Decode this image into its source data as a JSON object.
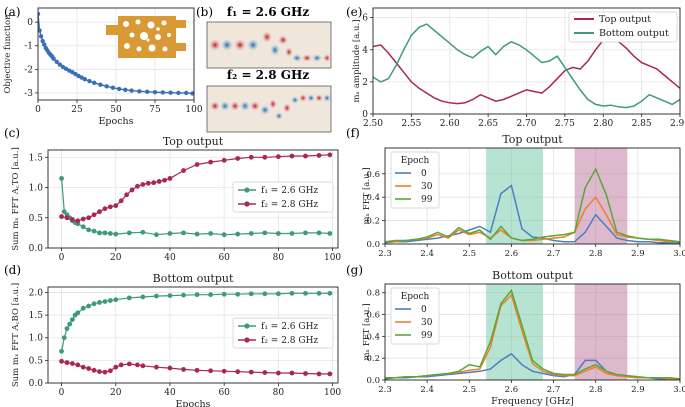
{
  "colors": {
    "blue_series": "#3a6fb5",
    "top_series": "#a8284e",
    "bottom_series": "#3e9a7d",
    "epoch0": "#4c7fc0",
    "epoch30": "#f07f2a",
    "epoch99": "#58a839",
    "band_f1": "#5fc09e",
    "band_f2": "#b5628f",
    "device": "#d99a36"
  },
  "chart_data": [
    {
      "panel": "(a)",
      "type": "scatter",
      "title": "",
      "xlabel": "Epochs",
      "ylabel": "Objective function",
      "xlim": [
        0,
        100
      ],
      "ylim": [
        -3.3,
        0.6
      ],
      "xticks": [
        0,
        25,
        50,
        75,
        100
      ],
      "yticks": [
        0,
        -1,
        -2,
        -3
      ],
      "x": [
        0,
        1,
        2,
        3,
        4,
        5,
        6,
        7,
        8,
        9,
        10,
        12,
        14,
        16,
        18,
        20,
        22,
        24,
        26,
        28,
        30,
        33,
        36,
        40,
        44,
        48,
        52,
        56,
        60,
        65,
        70,
        75,
        80,
        85,
        90,
        95,
        99
      ],
      "y": [
        0.35,
        -0.35,
        -0.6,
        -0.8,
        -0.95,
        -1.1,
        -1.2,
        -1.3,
        -1.38,
        -1.45,
        -1.55,
        -1.68,
        -1.8,
        -1.9,
        -1.98,
        -2.05,
        -2.12,
        -2.2,
        -2.28,
        -2.35,
        -2.42,
        -2.5,
        -2.57,
        -2.65,
        -2.72,
        -2.78,
        -2.83,
        -2.87,
        -2.9,
        -2.93,
        -2.95,
        -2.97,
        -2.98,
        -2.99,
        -3.0,
        -3.0,
        -3.02
      ]
    },
    {
      "panel": "(b)",
      "type": "image",
      "labels": [
        "f₁ = 2.6 GHz",
        "f₂ = 2.8 GHz"
      ]
    },
    {
      "panel": "(c)",
      "type": "scatter",
      "title": "Top output",
      "xlabel": "",
      "ylabel": "Sum mₓ FFT A꜀TO [a.u.]",
      "xlim": [
        -5,
        102
      ],
      "ylim": [
        0,
        1.62
      ],
      "xticks": [
        0,
        20,
        40,
        60,
        80,
        100
      ],
      "yticks": [
        0.0,
        0.5,
        1.0,
        1.5
      ],
      "legend": [
        "f₁ = 2.6 GHz",
        "f₂ = 2.8 GHz"
      ],
      "series": [
        {
          "name": "f₁ = 2.6 GHz",
          "x": [
            0,
            1,
            2,
            3,
            4,
            5,
            6,
            8,
            10,
            12,
            14,
            16,
            18,
            20,
            25,
            30,
            35,
            40,
            45,
            50,
            55,
            60,
            65,
            70,
            75,
            80,
            85,
            90,
            95,
            99
          ],
          "y": [
            1.15,
            0.6,
            0.55,
            0.5,
            0.45,
            0.42,
            0.4,
            0.35,
            0.3,
            0.28,
            0.25,
            0.25,
            0.24,
            0.23,
            0.25,
            0.26,
            0.22,
            0.24,
            0.25,
            0.23,
            0.24,
            0.22,
            0.23,
            0.24,
            0.25,
            0.24,
            0.24,
            0.25,
            0.25,
            0.24
          ]
        },
        {
          "name": "f₂ = 2.8 GHz",
          "x": [
            0,
            2,
            4,
            6,
            8,
            10,
            12,
            14,
            16,
            18,
            20,
            22,
            24,
            26,
            28,
            30,
            32,
            34,
            36,
            38,
            40,
            45,
            50,
            55,
            60,
            65,
            70,
            75,
            80,
            85,
            90,
            95,
            99
          ],
          "y": [
            0.52,
            0.5,
            0.47,
            0.45,
            0.48,
            0.5,
            0.55,
            0.6,
            0.65,
            0.68,
            0.7,
            0.78,
            0.88,
            0.96,
            1.02,
            1.05,
            1.07,
            1.08,
            1.1,
            1.12,
            1.15,
            1.28,
            1.38,
            1.42,
            1.45,
            1.48,
            1.5,
            1.5,
            1.51,
            1.52,
            1.52,
            1.53,
            1.54
          ]
        }
      ]
    },
    {
      "panel": "(d)",
      "type": "scatter",
      "title": "Bottom output",
      "xlabel": "Epochs",
      "ylabel": "Sum mₓ FFT A꜀BO [a.u.]",
      "xlim": [
        -5,
        102
      ],
      "ylim": [
        0,
        2.12
      ],
      "xticks": [
        0,
        20,
        40,
        60,
        80,
        100
      ],
      "yticks": [
        0.0,
        0.5,
        1.0,
        1.5,
        2.0
      ],
      "legend": [
        "f₁ = 2.6 GHz",
        "f₂ = 2.8 GHz"
      ],
      "series": [
        {
          "name": "f₁ = 2.6 GHz",
          "x": [
            0,
            1,
            2,
            3,
            4,
            5,
            6,
            8,
            10,
            12,
            14,
            16,
            18,
            20,
            25,
            30,
            35,
            40,
            45,
            50,
            55,
            60,
            65,
            70,
            75,
            80,
            85,
            90,
            95,
            99
          ],
          "y": [
            0.7,
            1.0,
            1.2,
            1.3,
            1.4,
            1.5,
            1.55,
            1.65,
            1.7,
            1.75,
            1.78,
            1.8,
            1.82,
            1.84,
            1.88,
            1.9,
            1.92,
            1.93,
            1.94,
            1.95,
            1.95,
            1.96,
            1.96,
            1.97,
            1.97,
            1.97,
            1.98,
            1.98,
            1.98,
            1.98
          ]
        },
        {
          "name": "f₂ = 2.8 GHz",
          "x": [
            0,
            2,
            4,
            6,
            8,
            10,
            12,
            14,
            16,
            18,
            20,
            22,
            25,
            28,
            30,
            35,
            40,
            45,
            50,
            55,
            60,
            65,
            70,
            75,
            80,
            85,
            90,
            95,
            99
          ],
          "y": [
            0.48,
            0.45,
            0.43,
            0.4,
            0.35,
            0.32,
            0.28,
            0.25,
            0.24,
            0.27,
            0.35,
            0.4,
            0.42,
            0.4,
            0.38,
            0.35,
            0.33,
            0.3,
            0.28,
            0.27,
            0.26,
            0.25,
            0.24,
            0.23,
            0.22,
            0.22,
            0.21,
            0.2,
            0.2
          ]
        }
      ]
    },
    {
      "panel": "(e)",
      "type": "line",
      "title": "",
      "xlabel": "",
      "ylabel": "mₓ amplitude [a.u.]",
      "xlim": [
        2.5,
        2.9
      ],
      "ylim": [
        0,
        6.6
      ],
      "xticks": [
        2.5,
        2.55,
        2.6,
        2.65,
        2.7,
        2.75,
        2.8,
        2.85,
        2.9
      ],
      "yticks": [
        0,
        2,
        4,
        6
      ],
      "legend": [
        "Top output",
        "Bottom output"
      ],
      "series": [
        {
          "name": "Top output",
          "x": [
            2.5,
            2.51,
            2.52,
            2.53,
            2.54,
            2.55,
            2.56,
            2.57,
            2.58,
            2.59,
            2.6,
            2.61,
            2.62,
            2.63,
            2.64,
            2.65,
            2.66,
            2.67,
            2.68,
            2.69,
            2.7,
            2.71,
            2.72,
            2.73,
            2.74,
            2.75,
            2.76,
            2.77,
            2.78,
            2.79,
            2.8,
            2.81,
            2.82,
            2.83,
            2.84,
            2.85,
            2.86,
            2.87,
            2.88,
            2.89,
            2.9
          ],
          "y": [
            4.2,
            4.3,
            3.8,
            3.2,
            2.6,
            2.0,
            1.6,
            1.3,
            1.0,
            0.8,
            0.7,
            0.65,
            0.7,
            0.9,
            1.2,
            1.0,
            0.8,
            0.9,
            1.1,
            1.3,
            1.5,
            1.4,
            1.3,
            1.7,
            2.2,
            2.7,
            2.9,
            2.8,
            3.3,
            4.0,
            4.6,
            4.8,
            4.5,
            4.1,
            3.6,
            3.2,
            3.0,
            2.8,
            2.4,
            2.0,
            1.6
          ]
        },
        {
          "name": "Bottom output",
          "x": [
            2.5,
            2.51,
            2.52,
            2.53,
            2.54,
            2.55,
            2.56,
            2.57,
            2.58,
            2.59,
            2.6,
            2.61,
            2.62,
            2.63,
            2.64,
            2.65,
            2.66,
            2.67,
            2.68,
            2.69,
            2.7,
            2.71,
            2.72,
            2.73,
            2.74,
            2.75,
            2.76,
            2.77,
            2.78,
            2.79,
            2.8,
            2.81,
            2.82,
            2.83,
            2.84,
            2.85,
            2.86,
            2.87,
            2.88,
            2.89,
            2.9
          ],
          "y": [
            2.3,
            2.0,
            2.2,
            3.0,
            4.0,
            4.9,
            5.4,
            5.6,
            5.2,
            4.8,
            4.4,
            4.0,
            3.7,
            3.5,
            3.9,
            4.2,
            3.7,
            4.2,
            4.5,
            4.3,
            4.0,
            3.6,
            3.2,
            3.3,
            3.6,
            2.9,
            2.2,
            1.5,
            0.9,
            0.6,
            0.5,
            0.55,
            0.45,
            0.4,
            0.5,
            0.8,
            1.2,
            1.0,
            0.8,
            0.6,
            0.9
          ]
        }
      ]
    },
    {
      "panel": "(f)",
      "type": "line",
      "title": "Top output",
      "xlabel": "",
      "ylabel": "mₓ FFT [a.u.]",
      "xlim": [
        2.3,
        3.0
      ],
      "ylim": [
        0,
        0.82
      ],
      "xticks": [
        2.3,
        2.4,
        2.5,
        2.6,
        2.7,
        2.8,
        2.9,
        3.0
      ],
      "yticks": [
        0.0,
        0.2,
        0.4,
        0.6
      ],
      "bands": [
        [
          2.54,
          2.675
        ],
        [
          2.75,
          2.875
        ]
      ],
      "legend_title": "Epoch",
      "series": [
        {
          "name": "0",
          "x": [
            2.3,
            2.325,
            2.35,
            2.375,
            2.4,
            2.425,
            2.45,
            2.475,
            2.5,
            2.525,
            2.55,
            2.575,
            2.6,
            2.625,
            2.65,
            2.675,
            2.7,
            2.725,
            2.75,
            2.775,
            2.8,
            2.825,
            2.85,
            2.875,
            2.9,
            2.925,
            2.95,
            2.975,
            3.0
          ],
          "y": [
            0.01,
            0.02,
            0.02,
            0.03,
            0.04,
            0.05,
            0.07,
            0.09,
            0.12,
            0.15,
            0.1,
            0.43,
            0.5,
            0.13,
            0.06,
            0.05,
            0.03,
            0.02,
            0.02,
            0.1,
            0.25,
            0.15,
            0.05,
            0.03,
            0.02,
            0.02,
            0.01,
            0.01,
            0.01
          ]
        },
        {
          "name": "30",
          "x": [
            2.3,
            2.325,
            2.35,
            2.375,
            2.4,
            2.425,
            2.45,
            2.475,
            2.5,
            2.525,
            2.55,
            2.575,
            2.6,
            2.625,
            2.65,
            2.675,
            2.7,
            2.725,
            2.75,
            2.775,
            2.8,
            2.825,
            2.85,
            2.875,
            2.9,
            2.925,
            2.95,
            2.975,
            3.0
          ],
          "y": [
            0.02,
            0.02,
            0.03,
            0.04,
            0.05,
            0.08,
            0.05,
            0.12,
            0.08,
            0.1,
            0.05,
            0.12,
            0.05,
            0.03,
            0.03,
            0.04,
            0.05,
            0.06,
            0.1,
            0.3,
            0.4,
            0.25,
            0.08,
            0.06,
            0.05,
            0.04,
            0.03,
            0.02,
            0.02
          ]
        },
        {
          "name": "99",
          "x": [
            2.3,
            2.325,
            2.35,
            2.375,
            2.4,
            2.425,
            2.45,
            2.475,
            2.5,
            2.525,
            2.55,
            2.575,
            2.6,
            2.625,
            2.65,
            2.675,
            2.7,
            2.725,
            2.75,
            2.775,
            2.8,
            2.825,
            2.85,
            2.875,
            2.9,
            2.925,
            2.95,
            2.975,
            3.0
          ],
          "y": [
            0.02,
            0.03,
            0.03,
            0.04,
            0.06,
            0.1,
            0.06,
            0.14,
            0.09,
            0.12,
            0.04,
            0.15,
            0.05,
            0.03,
            0.04,
            0.06,
            0.07,
            0.08,
            0.1,
            0.48,
            0.64,
            0.42,
            0.1,
            0.07,
            0.05,
            0.04,
            0.04,
            0.03,
            0.02
          ]
        }
      ]
    },
    {
      "panel": "(g)",
      "type": "line",
      "title": "Bottom output",
      "xlabel": "Frequency [GHz]",
      "ylabel": "mₓ FFT [a.u.]",
      "xlim": [
        2.3,
        3.0
      ],
      "ylim": [
        0,
        0.88
      ],
      "xticks": [
        2.3,
        2.4,
        2.5,
        2.6,
        2.7,
        2.8,
        2.9,
        3.0
      ],
      "yticks": [
        0.0,
        0.2,
        0.4,
        0.6,
        0.8
      ],
      "bands": [
        [
          2.54,
          2.675
        ],
        [
          2.75,
          2.875
        ]
      ],
      "legend_title": "Epoch",
      "series": [
        {
          "name": "0",
          "x": [
            2.3,
            2.325,
            2.35,
            2.375,
            2.4,
            2.425,
            2.45,
            2.475,
            2.5,
            2.525,
            2.55,
            2.575,
            2.6,
            2.625,
            2.65,
            2.675,
            2.7,
            2.725,
            2.75,
            2.775,
            2.8,
            2.825,
            2.85,
            2.875,
            2.9,
            2.925,
            2.95,
            2.975,
            3.0
          ],
          "y": [
            0.01,
            0.02,
            0.02,
            0.03,
            0.03,
            0.04,
            0.05,
            0.06,
            0.07,
            0.08,
            0.1,
            0.18,
            0.24,
            0.14,
            0.08,
            0.06,
            0.04,
            0.03,
            0.05,
            0.18,
            0.18,
            0.08,
            0.04,
            0.03,
            0.02,
            0.02,
            0.01,
            0.01,
            0.01
          ]
        },
        {
          "name": "30",
          "x": [
            2.3,
            2.325,
            2.35,
            2.375,
            2.4,
            2.425,
            2.45,
            2.475,
            2.5,
            2.525,
            2.55,
            2.575,
            2.6,
            2.625,
            2.65,
            2.675,
            2.7,
            2.725,
            2.75,
            2.775,
            2.8,
            2.825,
            2.85,
            2.875,
            2.9,
            2.925,
            2.95,
            2.975,
            3.0
          ],
          "y": [
            0.02,
            0.02,
            0.03,
            0.03,
            0.04,
            0.05,
            0.06,
            0.07,
            0.09,
            0.1,
            0.3,
            0.68,
            0.78,
            0.45,
            0.15,
            0.08,
            0.05,
            0.04,
            0.04,
            0.08,
            0.12,
            0.06,
            0.04,
            0.03,
            0.02,
            0.02,
            0.02,
            0.01,
            0.01
          ]
        },
        {
          "name": "99",
          "x": [
            2.3,
            2.325,
            2.35,
            2.375,
            2.4,
            2.425,
            2.45,
            2.475,
            2.5,
            2.525,
            2.55,
            2.575,
            2.6,
            2.625,
            2.65,
            2.675,
            2.7,
            2.725,
            2.75,
            2.775,
            2.8,
            2.825,
            2.85,
            2.875,
            2.9,
            2.925,
            2.95,
            2.975,
            3.0
          ],
          "y": [
            0.02,
            0.02,
            0.03,
            0.03,
            0.04,
            0.05,
            0.06,
            0.08,
            0.14,
            0.12,
            0.35,
            0.7,
            0.82,
            0.5,
            0.18,
            0.1,
            0.06,
            0.05,
            0.05,
            0.1,
            0.14,
            0.08,
            0.05,
            0.04,
            0.03,
            0.02,
            0.02,
            0.02,
            0.01
          ]
        }
      ]
    }
  ]
}
